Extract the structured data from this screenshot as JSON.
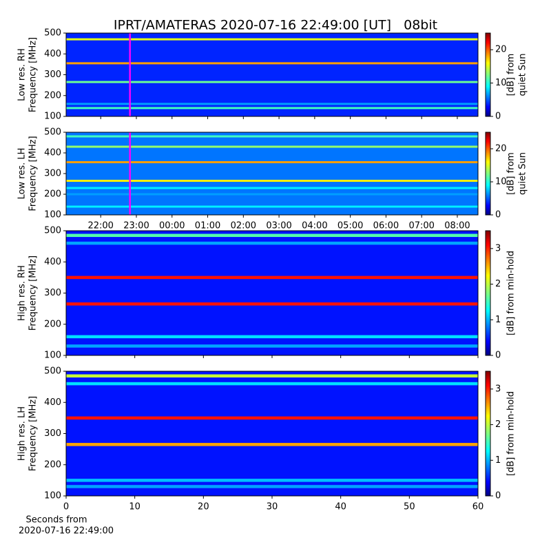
{
  "chart_data": {
    "type": "heatmap",
    "title": "IPRT/AMATERAS 2020-07-16 22:49:00 [UT]   08bit",
    "time_xlim": [
      21.03,
      32.58
    ],
    "time_xticks": [
      {
        "value": 22,
        "label": "22:00"
      },
      {
        "value": 23,
        "label": "23:00"
      },
      {
        "value": 24,
        "label": "00:00"
      },
      {
        "value": 25,
        "label": "01:00"
      },
      {
        "value": 26,
        "label": "02:00"
      },
      {
        "value": 27,
        "label": "03:00"
      },
      {
        "value": 28,
        "label": "04:00"
      },
      {
        "value": 29,
        "label": "05:00"
      },
      {
        "value": 30,
        "label": "06:00"
      },
      {
        "value": 31,
        "label": "07:00"
      },
      {
        "value": 32,
        "label": "08:00"
      }
    ],
    "marker_x": 22.82,
    "marker_color": "#ff00ff",
    "seconds_xlim": [
      0,
      60
    ],
    "seconds_xticks": [
      0,
      10,
      20,
      30,
      40,
      50,
      60
    ],
    "seconds_xlabel": [
      "Seconds from",
      "2020-07-16 22:49:00"
    ],
    "panels": [
      {
        "axis": "time",
        "ylabel": [
          "Low res. RH",
          "Frequency [MHz]"
        ],
        "ylim": [
          100,
          500
        ],
        "yticks": [
          100,
          200,
          300,
          400,
          500
        ],
        "clabel": [
          "[dB] from",
          "quiet Sun"
        ],
        "clim": [
          0,
          25
        ],
        "cticks": [
          0,
          10,
          20
        ],
        "background_level": 4,
        "bands": [
          {
            "freq": 470,
            "level": 15
          },
          {
            "freq": 355,
            "level": 18
          },
          {
            "freq": 265,
            "level": 12
          },
          {
            "freq": 160,
            "level": 7
          },
          {
            "freq": 140,
            "level": 11
          }
        ]
      },
      {
        "axis": "time",
        "ylabel": [
          "Low res. LH",
          "Frequency [MHz]"
        ],
        "ylim": [
          100,
          500
        ],
        "yticks": [
          100,
          200,
          300,
          400,
          500
        ],
        "clabel": [
          "[dB] from",
          "quiet Sun"
        ],
        "clim": [
          0,
          25
        ],
        "cticks": [
          0,
          10,
          20
        ],
        "background_level": 6,
        "bands": [
          {
            "freq": 480,
            "level": 11
          },
          {
            "freq": 430,
            "level": 13
          },
          {
            "freq": 355,
            "level": 18
          },
          {
            "freq": 265,
            "level": 16
          },
          {
            "freq": 230,
            "level": 9
          },
          {
            "freq": 200,
            "level": 7
          },
          {
            "freq": 140,
            "level": 9
          }
        ]
      },
      {
        "axis": "seconds",
        "ylabel": [
          "High res. RH",
          "Frequency [MHz]"
        ],
        "ylim": [
          100,
          500
        ],
        "yticks": [
          100,
          200,
          300,
          400,
          500
        ],
        "clabel": [
          "[dB] from min-hold"
        ],
        "clim": [
          0,
          3.5
        ],
        "cticks": [
          0,
          1,
          2,
          3
        ],
        "background_level": 0.5,
        "bands": [
          {
            "freq": 485,
            "level": 1.6
          },
          {
            "freq": 460,
            "level": 1
          },
          {
            "freq": 350,
            "level": 3
          },
          {
            "freq": 265,
            "level": 3
          },
          {
            "freq": 160,
            "level": 1.2
          },
          {
            "freq": 130,
            "level": 1
          }
        ]
      },
      {
        "axis": "seconds",
        "ylabel": [
          "High res. LH",
          "Frequency [MHz]"
        ],
        "ylim": [
          100,
          500
        ],
        "yticks": [
          100,
          200,
          300,
          400,
          500
        ],
        "clabel": [
          "[dB] from min-hold"
        ],
        "clim": [
          0,
          3.5
        ],
        "cticks": [
          0,
          1,
          2,
          3
        ],
        "background_level": 0.5,
        "bands": [
          {
            "freq": 485,
            "level": 2
          },
          {
            "freq": 460,
            "level": 1.2
          },
          {
            "freq": 350,
            "level": 3
          },
          {
            "freq": 265,
            "level": 2.5
          },
          {
            "freq": 150,
            "level": 1.1
          },
          {
            "freq": 130,
            "level": 1
          }
        ]
      }
    ]
  }
}
